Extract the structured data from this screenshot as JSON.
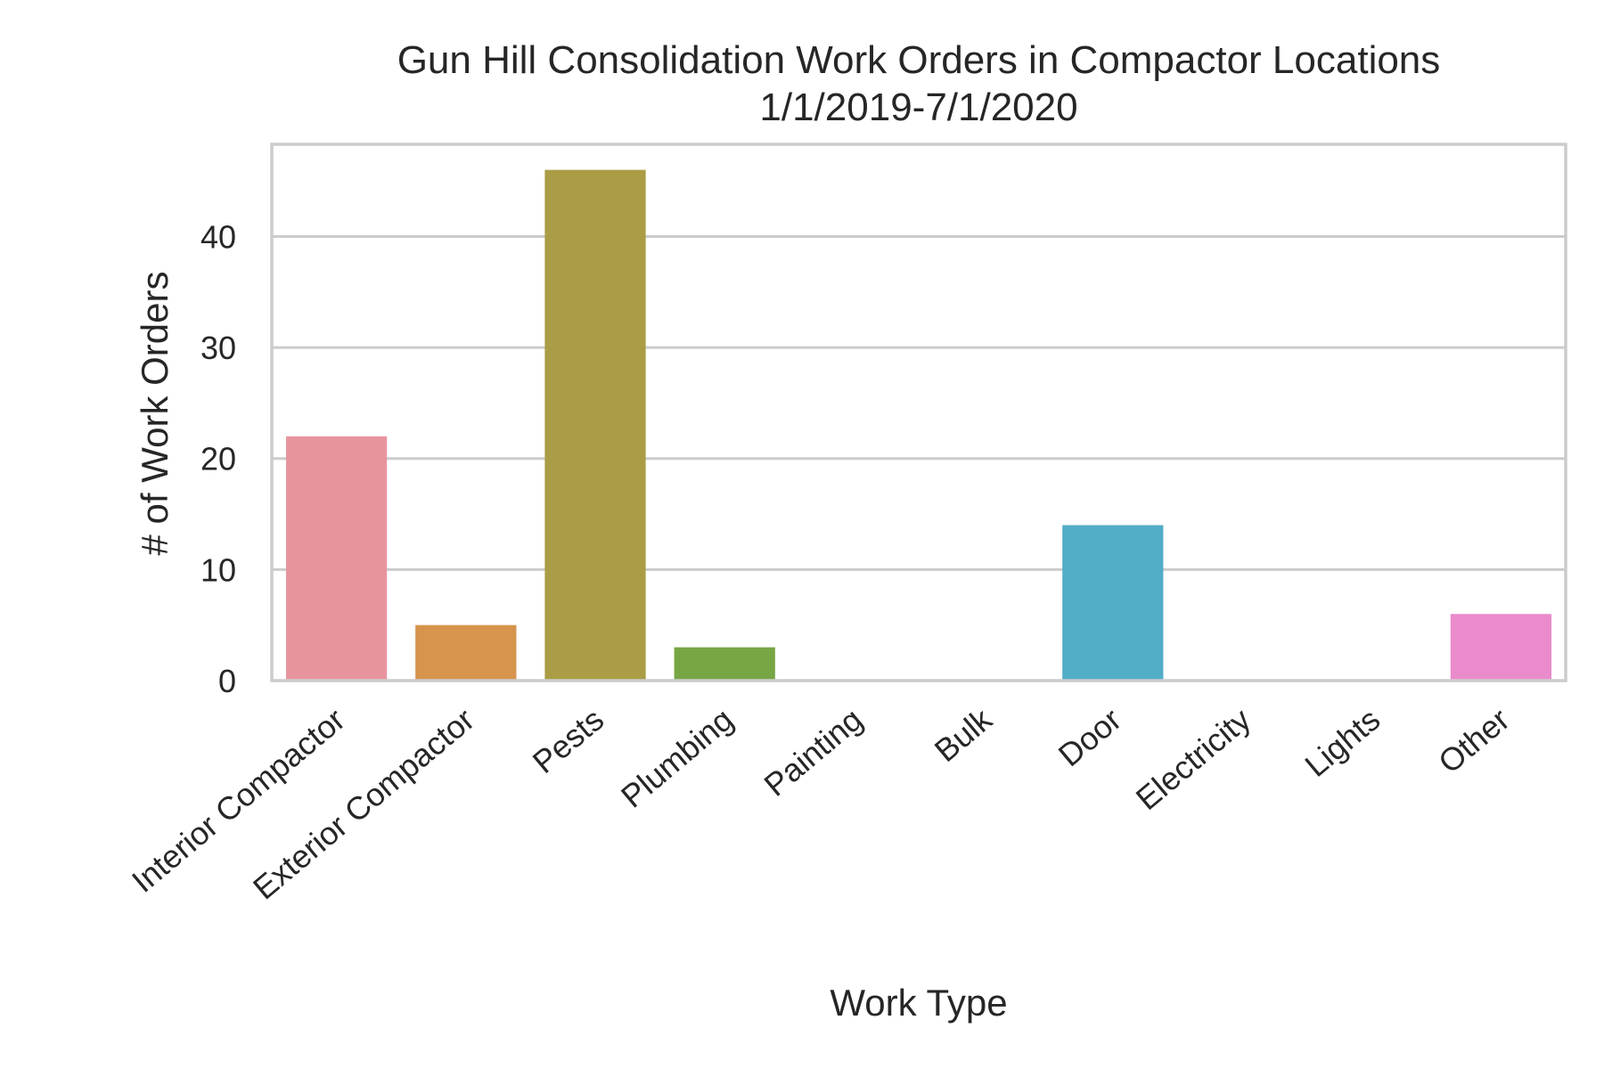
{
  "chart_data": {
    "type": "bar",
    "title": "Gun Hill Consolidation Work Orders in Compactor Locations",
    "subtitle": "1/1/2019-7/1/2020",
    "xlabel": "Work Type",
    "ylabel": "# of Work Orders",
    "categories": [
      "Interior Compactor",
      "Exterior Compactor",
      "Pests",
      "Plumbing",
      "Painting",
      "Bulk",
      "Door",
      "Electricity",
      "Lights",
      "Other"
    ],
    "values": [
      22,
      5,
      46,
      3,
      0,
      0,
      14,
      0,
      0,
      6
    ],
    "colors": [
      "#e8949f",
      "#d6944d",
      "#ab9d45",
      "#78a644",
      "#51ab8a",
      "#53ad9c",
      "#52adc7",
      "#82a4e6",
      "#c99aeb",
      "#ea8bcb"
    ],
    "yticks": [
      0,
      10,
      20,
      30,
      40
    ],
    "ylim": [
      0,
      48.3
    ],
    "grid": true,
    "legend": "none"
  }
}
